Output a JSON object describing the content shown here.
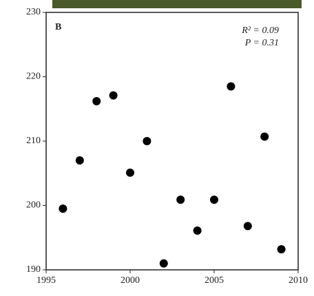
{
  "chart_data": {
    "type": "scatter",
    "annotations": [
      "B",
      "R² = 0.09",
      "P = 0.31"
    ],
    "x": [
      1996,
      1997,
      1998,
      1999,
      2000,
      2001,
      2002,
      2003,
      2004,
      2005,
      2006,
      2007,
      2008,
      2009
    ],
    "values": [
      199.5,
      207.0,
      216.2,
      217.1,
      205.1,
      210.0,
      191.0,
      200.9,
      196.1,
      200.9,
      218.5,
      196.8,
      210.7,
      193.2
    ],
    "color": "#000000",
    "xlim": [
      1995,
      2010
    ],
    "xticks": [
      1995,
      2000,
      2005,
      2010
    ],
    "ylim": [
      190,
      230
    ],
    "yticks": [
      190,
      200,
      210,
      220,
      230
    ]
  }
}
